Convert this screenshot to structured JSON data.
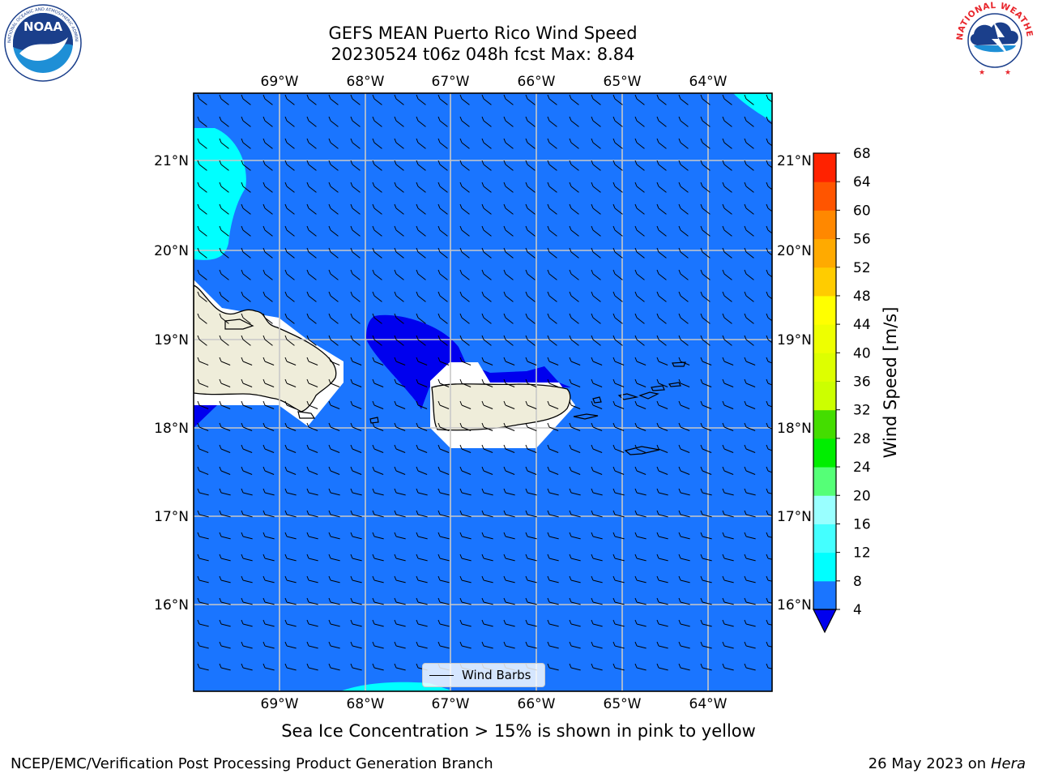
{
  "title": {
    "line1": "GEFS MEAN Puerto Rico Wind Speed",
    "line2": "20230524 t06z 048h fcst   Max: 8.84"
  },
  "logos": {
    "left": "NOAA",
    "left_ring": "NATIONAL OCEANIC AND ATMOSPHERIC ADMINISTRATION · U.S. DEPARTMENT OF COMMERCE",
    "right_ring": "NATIONAL WEATHER SERVICE"
  },
  "map": {
    "lon_labels": [
      "69°W",
      "68°W",
      "67°W",
      "66°W",
      "65°W",
      "64°W"
    ],
    "lat_labels": [
      "21°N",
      "20°N",
      "19°N",
      "18°N",
      "17°N",
      "16°N"
    ],
    "legend_label": "Wind Barbs",
    "colors": {
      "ocean": "#1a75ff",
      "light": "#00ffff",
      "dark": "#0000ee",
      "land": "#efedda"
    }
  },
  "colorbar": {
    "label": "Wind Speed [m/s]",
    "ticks": [
      "4",
      "8",
      "12",
      "16",
      "20",
      "24",
      "28",
      "32",
      "36",
      "40",
      "44",
      "48",
      "52",
      "56",
      "60",
      "64",
      "68"
    ],
    "colors": [
      "#1a75ff",
      "#00ffff",
      "#44ffff",
      "#99ffff",
      "#55ff77",
      "#00ee00",
      "#44dd00",
      "#ccff00",
      "#ddff00",
      "#eeff00",
      "#ffff00",
      "#ffcc00",
      "#ffaa00",
      "#ff8800",
      "#ff5500",
      "#ff2200"
    ],
    "extend_color": "#0000ee"
  },
  "note": "Sea Ice Concentration > 15% is shown in pink to yellow",
  "footer": {
    "left": "NCEP/EMC/Verification Post Processing Product Generation Branch",
    "date": "26 May 2023 on",
    "machine": "Hera"
  }
}
